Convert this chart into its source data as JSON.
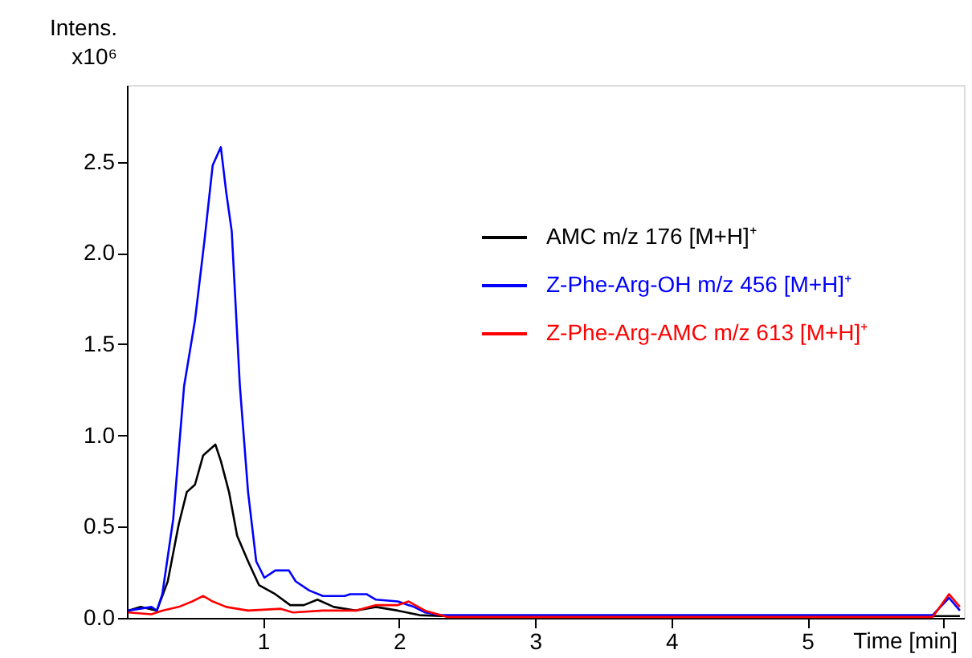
{
  "chart_data": {
    "type": "line",
    "xlabel": "Time [min]",
    "ylabel": "Intens. x10⁶",
    "xlim": [
      0,
      6.15
    ],
    "ylim": [
      0,
      2.92
    ],
    "xticks": [
      1,
      2,
      3,
      4,
      5,
      {
        "value": 6,
        "label": null
      }
    ],
    "yticks": [
      {
        "value": 0,
        "label": "0.0"
      },
      0.5,
      {
        "value": 1,
        "label": "1.0"
      },
      1.5,
      {
        "value": 2,
        "label": "2.0"
      },
      2.5
    ],
    "grid": false,
    "legend": "right",
    "marker": "none",
    "line_style": "solid",
    "series": [
      {
        "name": "AMC m/z 176 [M+H]⁺",
        "color": "#000000",
        "x": [
          0.01,
          0.1,
          0.22,
          0.3,
          0.38,
          0.44,
          0.5,
          0.56,
          0.65,
          0.69,
          0.75,
          0.81,
          0.89,
          0.97,
          1.09,
          1.2,
          1.3,
          1.4,
          1.52,
          1.68,
          1.83,
          1.99,
          2.15,
          2.31,
          2.5,
          3.5,
          4.5,
          5.5,
          6.12
        ],
        "values": [
          0.04,
          0.06,
          0.04,
          0.2,
          0.51,
          0.69,
          0.73,
          0.89,
          0.95,
          0.86,
          0.69,
          0.45,
          0.31,
          0.18,
          0.13,
          0.07,
          0.07,
          0.1,
          0.06,
          0.04,
          0.06,
          0.04,
          0.015,
          0.01,
          0.01,
          0.01,
          0.01,
          0.01,
          0.01
        ]
      },
      {
        "name": "Z-Phe-Arg-OH m/z 456 [M+H]⁺",
        "color": "#0000ff",
        "x": [
          0.01,
          0.18,
          0.22,
          0.26,
          0.34,
          0.42,
          0.5,
          0.57,
          0.63,
          0.69,
          0.73,
          0.77,
          0.83,
          0.89,
          0.95,
          1.01,
          1.09,
          1.19,
          1.24,
          1.34,
          1.44,
          1.6,
          1.64,
          1.76,
          1.83,
          1.99,
          2.11,
          2.19,
          2.31,
          2.5,
          3.5,
          4.5,
          5.5,
          5.92,
          6.04,
          6.12
        ],
        "values": [
          0.04,
          0.06,
          0.04,
          0.13,
          0.54,
          1.27,
          1.63,
          2.07,
          2.48,
          2.58,
          2.33,
          2.12,
          1.27,
          0.69,
          0.31,
          0.22,
          0.26,
          0.26,
          0.2,
          0.15,
          0.12,
          0.12,
          0.13,
          0.13,
          0.1,
          0.09,
          0.06,
          0.03,
          0.015,
          0.015,
          0.015,
          0.015,
          0.015,
          0.015,
          0.11,
          0.04
        ]
      },
      {
        "name": "Z-Phe-Arg-AMC m/z 613 [M+H]⁺",
        "color": "#ff0000",
        "x": [
          0.01,
          0.18,
          0.26,
          0.38,
          0.48,
          0.56,
          0.63,
          0.73,
          0.89,
          1.13,
          1.22,
          1.44,
          1.68,
          1.83,
          1.99,
          2.07,
          2.19,
          2.35,
          2.5,
          3.5,
          4.5,
          5.5,
          5.92,
          6.04,
          6.12
        ],
        "values": [
          0.03,
          0.02,
          0.04,
          0.06,
          0.09,
          0.12,
          0.09,
          0.06,
          0.04,
          0.05,
          0.03,
          0.04,
          0.04,
          0.07,
          0.07,
          0.09,
          0.04,
          0.005,
          0.005,
          0.005,
          0.005,
          0.005,
          0.005,
          0.13,
          0.06
        ]
      }
    ]
  }
}
